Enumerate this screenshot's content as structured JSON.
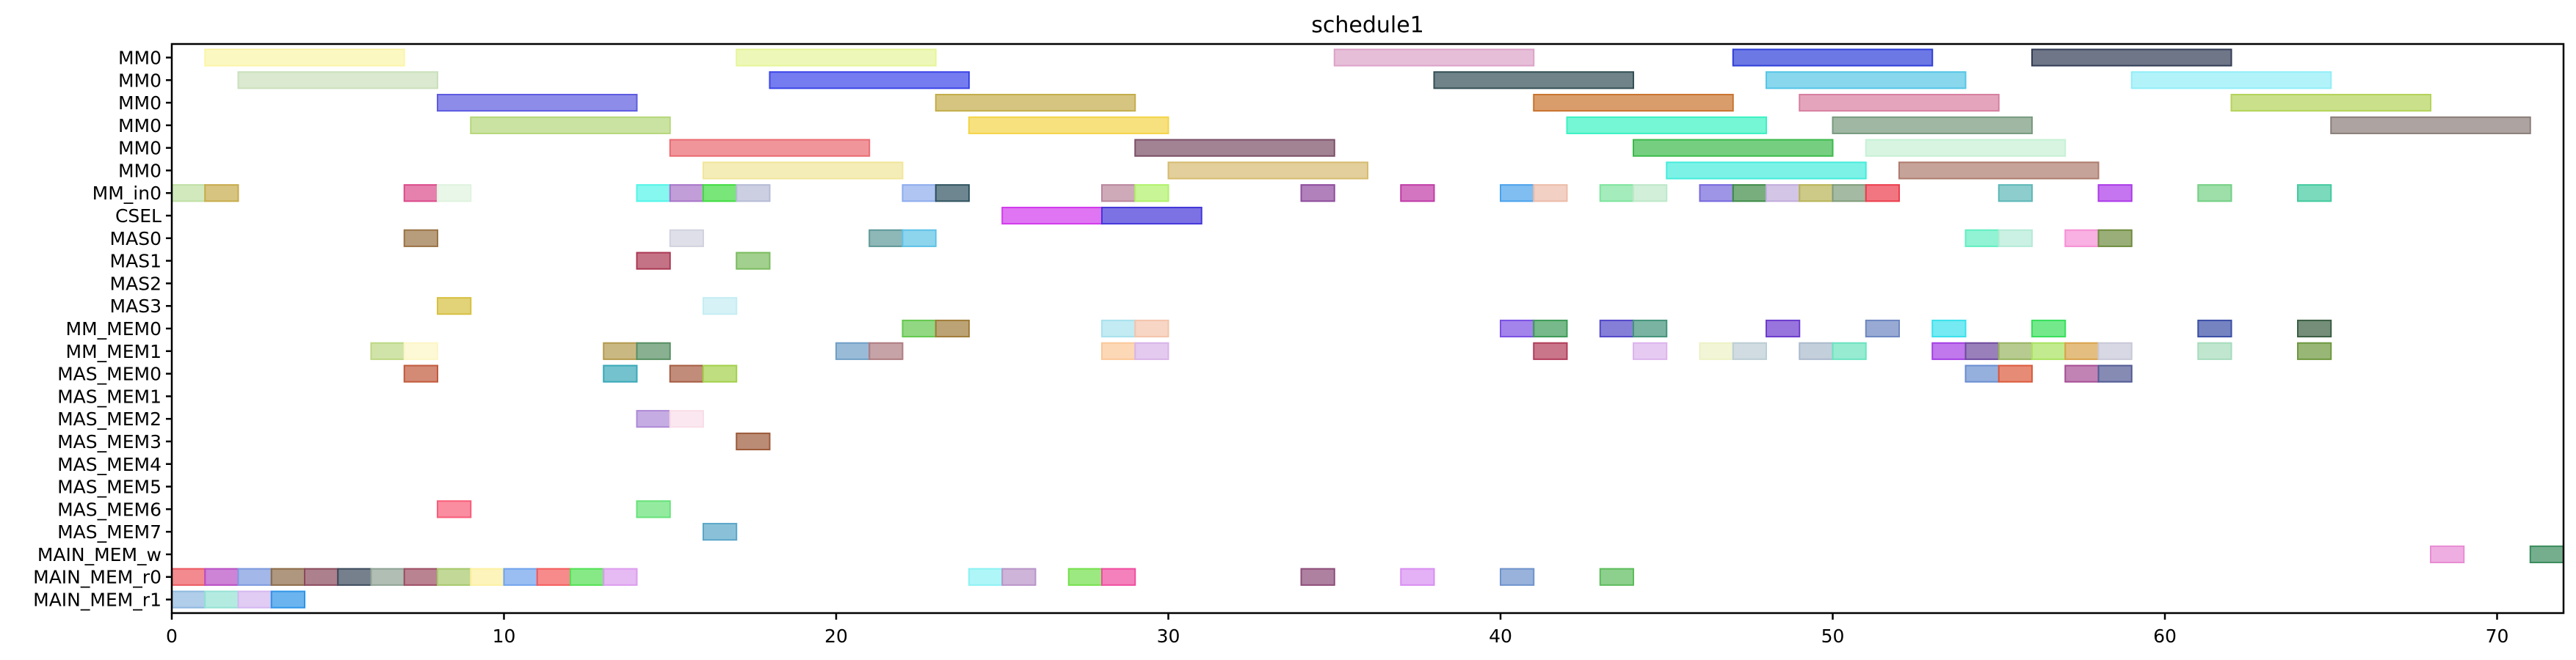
{
  "chart_data": {
    "type": "gantt",
    "title": "schedule1",
    "xlabel": "",
    "ylabel": "",
    "xlim": [
      0,
      72
    ],
    "xticks": [
      0,
      10,
      20,
      30,
      40,
      50,
      60,
      70
    ],
    "rows": [
      "MM0",
      "MM0",
      "MM0",
      "MM0",
      "MM0",
      "MM0",
      "MM_in0",
      "CSEL",
      "MAS0",
      "MAS1",
      "MAS2",
      "MAS3",
      "MM_MEM0",
      "MM_MEM1",
      "MAS_MEM0",
      "MAS_MEM1",
      "MAS_MEM2",
      "MAS_MEM3",
      "MAS_MEM4",
      "MAS_MEM5",
      "MAS_MEM6",
      "MAS_MEM7",
      "MAIN_MEM_w",
      "MAIN_MEM_r0",
      "MAIN_MEM_r1"
    ],
    "tasks": [
      {
        "row": 0,
        "start": 1,
        "end": 7,
        "color": "#fbf5a8"
      },
      {
        "row": 0,
        "start": 17,
        "end": 23,
        "color": "#e6f59a"
      },
      {
        "row": 0,
        "start": 35,
        "end": 41,
        "color": "#dca2c8"
      },
      {
        "row": 0,
        "start": 47,
        "end": 53,
        "color": "#2e3fd8"
      },
      {
        "row": 0,
        "start": 56,
        "end": 62,
        "color": "#323c55"
      },
      {
        "row": 1,
        "start": 2,
        "end": 8,
        "color": "#cae0bb"
      },
      {
        "row": 1,
        "start": 18,
        "end": 24,
        "color": "#3a44e8"
      },
      {
        "row": 1,
        "start": 38,
        "end": 44,
        "color": "#324f55"
      },
      {
        "row": 1,
        "start": 48,
        "end": 54,
        "color": "#55c6e6"
      },
      {
        "row": 1,
        "start": 59,
        "end": 65,
        "color": "#92eef8"
      },
      {
        "row": 2,
        "start": 8,
        "end": 14,
        "color": "#5d5be0"
      },
      {
        "row": 2,
        "start": 23,
        "end": 29,
        "color": "#c4ad4b"
      },
      {
        "row": 2,
        "start": 41,
        "end": 47,
        "color": "#c9732e"
      },
      {
        "row": 2,
        "start": 49,
        "end": 55,
        "color": "#d87fa0"
      },
      {
        "row": 2,
        "start": 62,
        "end": 68,
        "color": "#b4d35a"
      },
      {
        "row": 3,
        "start": 9,
        "end": 15,
        "color": "#b5d77a"
      },
      {
        "row": 3,
        "start": 24,
        "end": 30,
        "color": "#f4d447"
      },
      {
        "row": 3,
        "start": 42,
        "end": 48,
        "color": "#3af2c2"
      },
      {
        "row": 3,
        "start": 50,
        "end": 56,
        "color": "#77997e"
      },
      {
        "row": 3,
        "start": 65,
        "end": 71,
        "color": "#8a7e79"
      },
      {
        "row": 4,
        "start": 15,
        "end": 21,
        "color": "#ea6a71"
      },
      {
        "row": 4,
        "start": 29,
        "end": 35,
        "color": "#7a4e66"
      },
      {
        "row": 4,
        "start": 44,
        "end": 50,
        "color": "#3cba4b"
      },
      {
        "row": 4,
        "start": 51,
        "end": 57,
        "color": "#c7f1d6"
      },
      {
        "row": 5,
        "start": 16,
        "end": 22,
        "color": "#f0e69a"
      },
      {
        "row": 5,
        "start": 30,
        "end": 36,
        "color": "#d6bb70"
      },
      {
        "row": 5,
        "start": 45,
        "end": 51,
        "color": "#45ecdc"
      },
      {
        "row": 5,
        "start": 52,
        "end": 58,
        "color": "#ae7c6e"
      },
      {
        "row": 6,
        "start": 0,
        "end": 1,
        "color": "#bfe0a3"
      },
      {
        "row": 6,
        "start": 1,
        "end": 2,
        "color": "#c7ab4b"
      },
      {
        "row": 6,
        "start": 7,
        "end": 8,
        "color": "#db4b8a"
      },
      {
        "row": 6,
        "start": 8,
        "end": 9,
        "color": "#dff3df"
      },
      {
        "row": 6,
        "start": 14,
        "end": 15,
        "color": "#52f5e8"
      },
      {
        "row": 6,
        "start": 15,
        "end": 16,
        "color": "#a875c8"
      },
      {
        "row": 6,
        "start": 16,
        "end": 17,
        "color": "#3fdc3f"
      },
      {
        "row": 6,
        "start": 17,
        "end": 18,
        "color": "#b6bbd6"
      },
      {
        "row": 6,
        "start": 22,
        "end": 23,
        "color": "#8eaded"
      },
      {
        "row": 6,
        "start": 23,
        "end": 24,
        "color": "#2f5360"
      },
      {
        "row": 6,
        "start": 28,
        "end": 29,
        "color": "#b9869b"
      },
      {
        "row": 6,
        "start": 29,
        "end": 30,
        "color": "#b0f26a"
      },
      {
        "row": 6,
        "start": 34,
        "end": 35,
        "color": "#8e4c9d"
      },
      {
        "row": 6,
        "start": 37,
        "end": 38,
        "color": "#c03ba7"
      },
      {
        "row": 6,
        "start": 40,
        "end": 41,
        "color": "#4aa2ec"
      },
      {
        "row": 6,
        "start": 41,
        "end": 42,
        "color": "#ecbca9"
      },
      {
        "row": 6,
        "start": 43,
        "end": 44,
        "color": "#7ee49e"
      },
      {
        "row": 6,
        "start": 44,
        "end": 45,
        "color": "#bde8c9"
      },
      {
        "row": 6,
        "start": 46,
        "end": 47,
        "color": "#7668dc"
      },
      {
        "row": 6,
        "start": 47,
        "end": 48,
        "color": "#3e8c47"
      },
      {
        "row": 6,
        "start": 48,
        "end": 49,
        "color": "#c1addb"
      },
      {
        "row": 6,
        "start": 49,
        "end": 50,
        "color": "#b8b455"
      },
      {
        "row": 6,
        "start": 50,
        "end": 51,
        "color": "#7f9c7a"
      },
      {
        "row": 6,
        "start": 51,
        "end": 52,
        "color": "#ec3c4c"
      },
      {
        "row": 6,
        "start": 55,
        "end": 56,
        "color": "#5eb8b8"
      },
      {
        "row": 6,
        "start": 58,
        "end": 59,
        "color": "#ac3ae8"
      },
      {
        "row": 6,
        "start": 61,
        "end": 62,
        "color": "#73d084"
      },
      {
        "row": 6,
        "start": 64,
        "end": 65,
        "color": "#42ca9e"
      },
      {
        "row": 7,
        "start": 25,
        "end": 28,
        "color": "#d23aec"
      },
      {
        "row": 7,
        "start": 28,
        "end": 31,
        "color": "#4436d8"
      },
      {
        "row": 8,
        "start": 7,
        "end": 8,
        "color": "#9a7345"
      },
      {
        "row": 8,
        "start": 15,
        "end": 16,
        "color": "#d2d2df"
      },
      {
        "row": 8,
        "start": 21,
        "end": 22,
        "color": "#5e9898"
      },
      {
        "row": 8,
        "start": 22,
        "end": 23,
        "color": "#5cc2e6"
      },
      {
        "row": 8,
        "start": 54,
        "end": 55,
        "color": "#62eec1"
      },
      {
        "row": 8,
        "start": 55,
        "end": 56,
        "color": "#b4ebd7"
      },
      {
        "row": 8,
        "start": 57,
        "end": 58,
        "color": "#f68fd5"
      },
      {
        "row": 8,
        "start": 58,
        "end": 59,
        "color": "#6e8c3e"
      },
      {
        "row": 9,
        "start": 14,
        "end": 15,
        "color": "#ab3752"
      },
      {
        "row": 9,
        "start": 17,
        "end": 18,
        "color": "#7abc5e"
      },
      {
        "row": 11,
        "start": 8,
        "end": 9,
        "color": "#d6c040"
      },
      {
        "row": 11,
        "start": 16,
        "end": 17,
        "color": "#c5edf2"
      },
      {
        "row": 12,
        "start": 22,
        "end": 23,
        "color": "#64c84e"
      },
      {
        "row": 12,
        "start": 23,
        "end": 24,
        "color": "#a07c3a"
      },
      {
        "row": 12,
        "start": 28,
        "end": 29,
        "color": "#a8e2ee"
      },
      {
        "row": 12,
        "start": 29,
        "end": 30,
        "color": "#f3c4ac"
      },
      {
        "row": 12,
        "start": 40,
        "end": 41,
        "color": "#7a50e3"
      },
      {
        "row": 12,
        "start": 41,
        "end": 42,
        "color": "#3d9b58"
      },
      {
        "row": 12,
        "start": 43,
        "end": 44,
        "color": "#5248c8"
      },
      {
        "row": 12,
        "start": 44,
        "end": 45,
        "color": "#43937a"
      },
      {
        "row": 12,
        "start": 48,
        "end": 49,
        "color": "#6c3bcd"
      },
      {
        "row": 12,
        "start": 51,
        "end": 52,
        "color": "#6c86c0"
      },
      {
        "row": 12,
        "start": 53,
        "end": 54,
        "color": "#3ae1ec"
      },
      {
        "row": 12,
        "start": 56,
        "end": 57,
        "color": "#37df5b"
      },
      {
        "row": 12,
        "start": 61,
        "end": 62,
        "color": "#3b4ea6"
      },
      {
        "row": 12,
        "start": 64,
        "end": 65,
        "color": "#3a5e42"
      },
      {
        "row": 13,
        "start": 6,
        "end": 7,
        "color": "#bcd884"
      },
      {
        "row": 13,
        "start": 7,
        "end": 8,
        "color": "#fcf6c6"
      },
      {
        "row": 13,
        "start": 13,
        "end": 14,
        "color": "#b49a4e"
      },
      {
        "row": 13,
        "start": 14,
        "end": 15,
        "color": "#568f62"
      },
      {
        "row": 13,
        "start": 20,
        "end": 21,
        "color": "#6f9ec6"
      },
      {
        "row": 13,
        "start": 21,
        "end": 22,
        "color": "#ae7c80"
      },
      {
        "row": 13,
        "start": 28,
        "end": 29,
        "color": "#fbc898"
      },
      {
        "row": 13,
        "start": 29,
        "end": 30,
        "color": "#d8b4e8"
      },
      {
        "row": 13,
        "start": 41,
        "end": 42,
        "color": "#b23c5a"
      },
      {
        "row": 13,
        "start": 44,
        "end": 45,
        "color": "#dcb4ec"
      },
      {
        "row": 13,
        "start": 46,
        "end": 47,
        "color": "#edf2c6"
      },
      {
        "row": 13,
        "start": 47,
        "end": 48,
        "color": "#bccdd4"
      },
      {
        "row": 13,
        "start": 49,
        "end": 50,
        "color": "#abbacd"
      },
      {
        "row": 13,
        "start": 50,
        "end": 51,
        "color": "#6ae3be"
      },
      {
        "row": 13,
        "start": 53,
        "end": 54,
        "color": "#a53ee4"
      },
      {
        "row": 13,
        "start": 54,
        "end": 55,
        "color": "#6d4a9d"
      },
      {
        "row": 13,
        "start": 55,
        "end": 56,
        "color": "#98b561"
      },
      {
        "row": 13,
        "start": 56,
        "end": 57,
        "color": "#a8e25f"
      },
      {
        "row": 13,
        "start": 57,
        "end": 58,
        "color": "#d9a24c"
      },
      {
        "row": 13,
        "start": 58,
        "end": 59,
        "color": "#c8c8d8"
      },
      {
        "row": 13,
        "start": 61,
        "end": 62,
        "color": "#a6dcbc"
      },
      {
        "row": 13,
        "start": 64,
        "end": 65,
        "color": "#6c983d"
      },
      {
        "row": 14,
        "start": 7,
        "end": 8,
        "color": "#c15a3c"
      },
      {
        "row": 14,
        "start": 13,
        "end": 14,
        "color": "#39a8b8"
      },
      {
        "row": 14,
        "start": 15,
        "end": 16,
        "color": "#a65c42"
      },
      {
        "row": 14,
        "start": 16,
        "end": 17,
        "color": "#a2d04a"
      },
      {
        "row": 14,
        "start": 54,
        "end": 55,
        "color": "#6a8ed0"
      },
      {
        "row": 14,
        "start": 55,
        "end": 56,
        "color": "#dc5a3c"
      },
      {
        "row": 14,
        "start": 57,
        "end": 58,
        "color": "#a64e94"
      },
      {
        "row": 14,
        "start": 58,
        "end": 59,
        "color": "#525a94"
      },
      {
        "row": 16,
        "start": 14,
        "end": 15,
        "color": "#ad89d5"
      },
      {
        "row": 16,
        "start": 15,
        "end": 16,
        "color": "#f9dde8"
      },
      {
        "row": 17,
        "start": 17,
        "end": 18,
        "color": "#9c5a3a"
      },
      {
        "row": 20,
        "start": 8,
        "end": 9,
        "color": "#f85c78"
      },
      {
        "row": 20,
        "start": 14,
        "end": 15,
        "color": "#66e278"
      },
      {
        "row": 21,
        "start": 16,
        "end": 17,
        "color": "#5aa6c8"
      },
      {
        "row": 22,
        "start": 68,
        "end": 69,
        "color": "#e88cd4"
      },
      {
        "row": 22,
        "start": 71,
        "end": 72,
        "color": "#3a8c5c"
      },
      {
        "row": 23,
        "start": 0,
        "end": 1,
        "color": "#ec5860"
      },
      {
        "row": 23,
        "start": 1,
        "end": 2,
        "color": "#b84ec4"
      },
      {
        "row": 23,
        "start": 2,
        "end": 3,
        "color": "#7c99de"
      },
      {
        "row": 23,
        "start": 3,
        "end": 4,
        "color": "#8c6a48"
      },
      {
        "row": 23,
        "start": 4,
        "end": 5,
        "color": "#8a4a5c"
      },
      {
        "row": 23,
        "start": 5,
        "end": 6,
        "color": "#3c4a5c"
      },
      {
        "row": 23,
        "start": 6,
        "end": 7,
        "color": "#8ea294"
      },
      {
        "row": 23,
        "start": 7,
        "end": 8,
        "color": "#9c4e64"
      },
      {
        "row": 23,
        "start": 8,
        "end": 9,
        "color": "#a6c86a"
      },
      {
        "row": 23,
        "start": 9,
        "end": 10,
        "color": "#fcf0a0"
      },
      {
        "row": 23,
        "start": 10,
        "end": 11,
        "color": "#70a2ec"
      },
      {
        "row": 23,
        "start": 11,
        "end": 12,
        "color": "#f45a5a"
      },
      {
        "row": 23,
        "start": 12,
        "end": 13,
        "color": "#52e052"
      },
      {
        "row": 23,
        "start": 13,
        "end": 14,
        "color": "#dc9cee"
      },
      {
        "row": 23,
        "start": 24,
        "end": 25,
        "color": "#8cf2f4"
      },
      {
        "row": 23,
        "start": 25,
        "end": 26,
        "color": "#b894c8"
      },
      {
        "row": 23,
        "start": 27,
        "end": 28,
        "color": "#74e04c"
      },
      {
        "row": 23,
        "start": 28,
        "end": 29,
        "color": "#f04ca0"
      },
      {
        "row": 23,
        "start": 34,
        "end": 35,
        "color": "#8c4c78"
      },
      {
        "row": 23,
        "start": 37,
        "end": 38,
        "color": "#d88ef2"
      },
      {
        "row": 23,
        "start": 40,
        "end": 41,
        "color": "#6e92cc"
      },
      {
        "row": 23,
        "start": 43,
        "end": 44,
        "color": "#5cbc5c"
      },
      {
        "row": 24,
        "start": 0,
        "end": 1,
        "color": "#8eb8e0"
      },
      {
        "row": 24,
        "start": 1,
        "end": 2,
        "color": "#94e2d4"
      },
      {
        "row": 24,
        "start": 2,
        "end": 3,
        "color": "#d4b6f0"
      },
      {
        "row": 24,
        "start": 3,
        "end": 4,
        "color": "#2e94e8"
      }
    ]
  }
}
